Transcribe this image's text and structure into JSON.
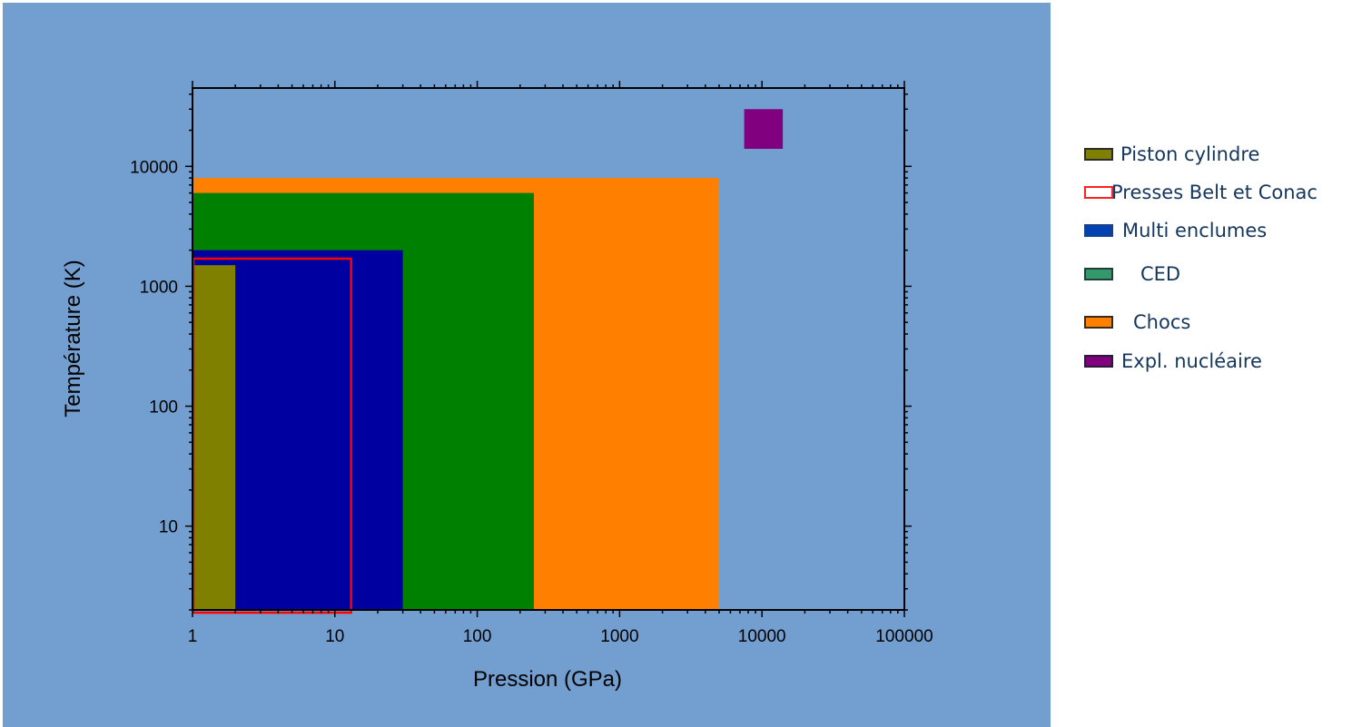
{
  "chart_data": {
    "type": "area",
    "xlabel": "Pression (GPa)",
    "ylabel": "Température (K)",
    "xscale": "log",
    "yscale": "log",
    "xlim": [
      1,
      100000
    ],
    "ylim": [
      2,
      45000
    ],
    "xticks": [
      1,
      10,
      100,
      1000,
      10000,
      100000
    ],
    "xtick_labels": [
      "1",
      "10",
      "100",
      "1000",
      "10000",
      "100000"
    ],
    "yticks": [
      10,
      100,
      1000,
      10000
    ],
    "ytick_labels": [
      "10",
      "100",
      "1000",
      "10000"
    ],
    "grid": false,
    "plot_background": "#729fcf",
    "series": [
      {
        "name": "Chocs",
        "x": [
          1,
          5000
        ],
        "y": [
          2,
          8000
        ],
        "color": "#ff8000",
        "style": "filled"
      },
      {
        "name": "CED",
        "x": [
          1,
          250
        ],
        "y": [
          2,
          6000
        ],
        "color": "#008000",
        "style": "filled"
      },
      {
        "name": "Multi enclumes",
        "x": [
          1,
          30
        ],
        "y": [
          2,
          2000
        ],
        "color": "#0000a0",
        "style": "filled"
      },
      {
        "name": "Piston cylindre",
        "x": [
          1,
          2
        ],
        "y": [
          2,
          1500
        ],
        "color": "#808000",
        "style": "filled"
      },
      {
        "name": "Presses Belt et Conac",
        "x": [
          1,
          13
        ],
        "y": [
          2,
          1700
        ],
        "color": "#ff0000",
        "style": "outline"
      },
      {
        "name": "Expl. nucléaire",
        "x": [
          7500,
          14000
        ],
        "y": [
          14000,
          30000
        ],
        "color": "#800080",
        "style": "filled"
      }
    ]
  },
  "legend": {
    "placement": "right",
    "items": [
      {
        "label": "Piston cylindre",
        "fill": "#808000",
        "border": "#2c2c2c"
      },
      {
        "label": "Presses Belt et Conac",
        "fill": "#ffffff",
        "border": "#ff2020"
      },
      {
        "label": "Multi enclumes",
        "fill": "#0041b4",
        "border": "#1c3f8a"
      },
      {
        "label": "CED",
        "fill": "#33996a",
        "border": "#1e3f3a"
      },
      {
        "label": "Chocs",
        "fill": "#ff7f00",
        "border": "#3a2a1a"
      },
      {
        "label": "Expl. nucléaire",
        "fill": "#800080",
        "border": "#2a1a3a"
      }
    ]
  }
}
